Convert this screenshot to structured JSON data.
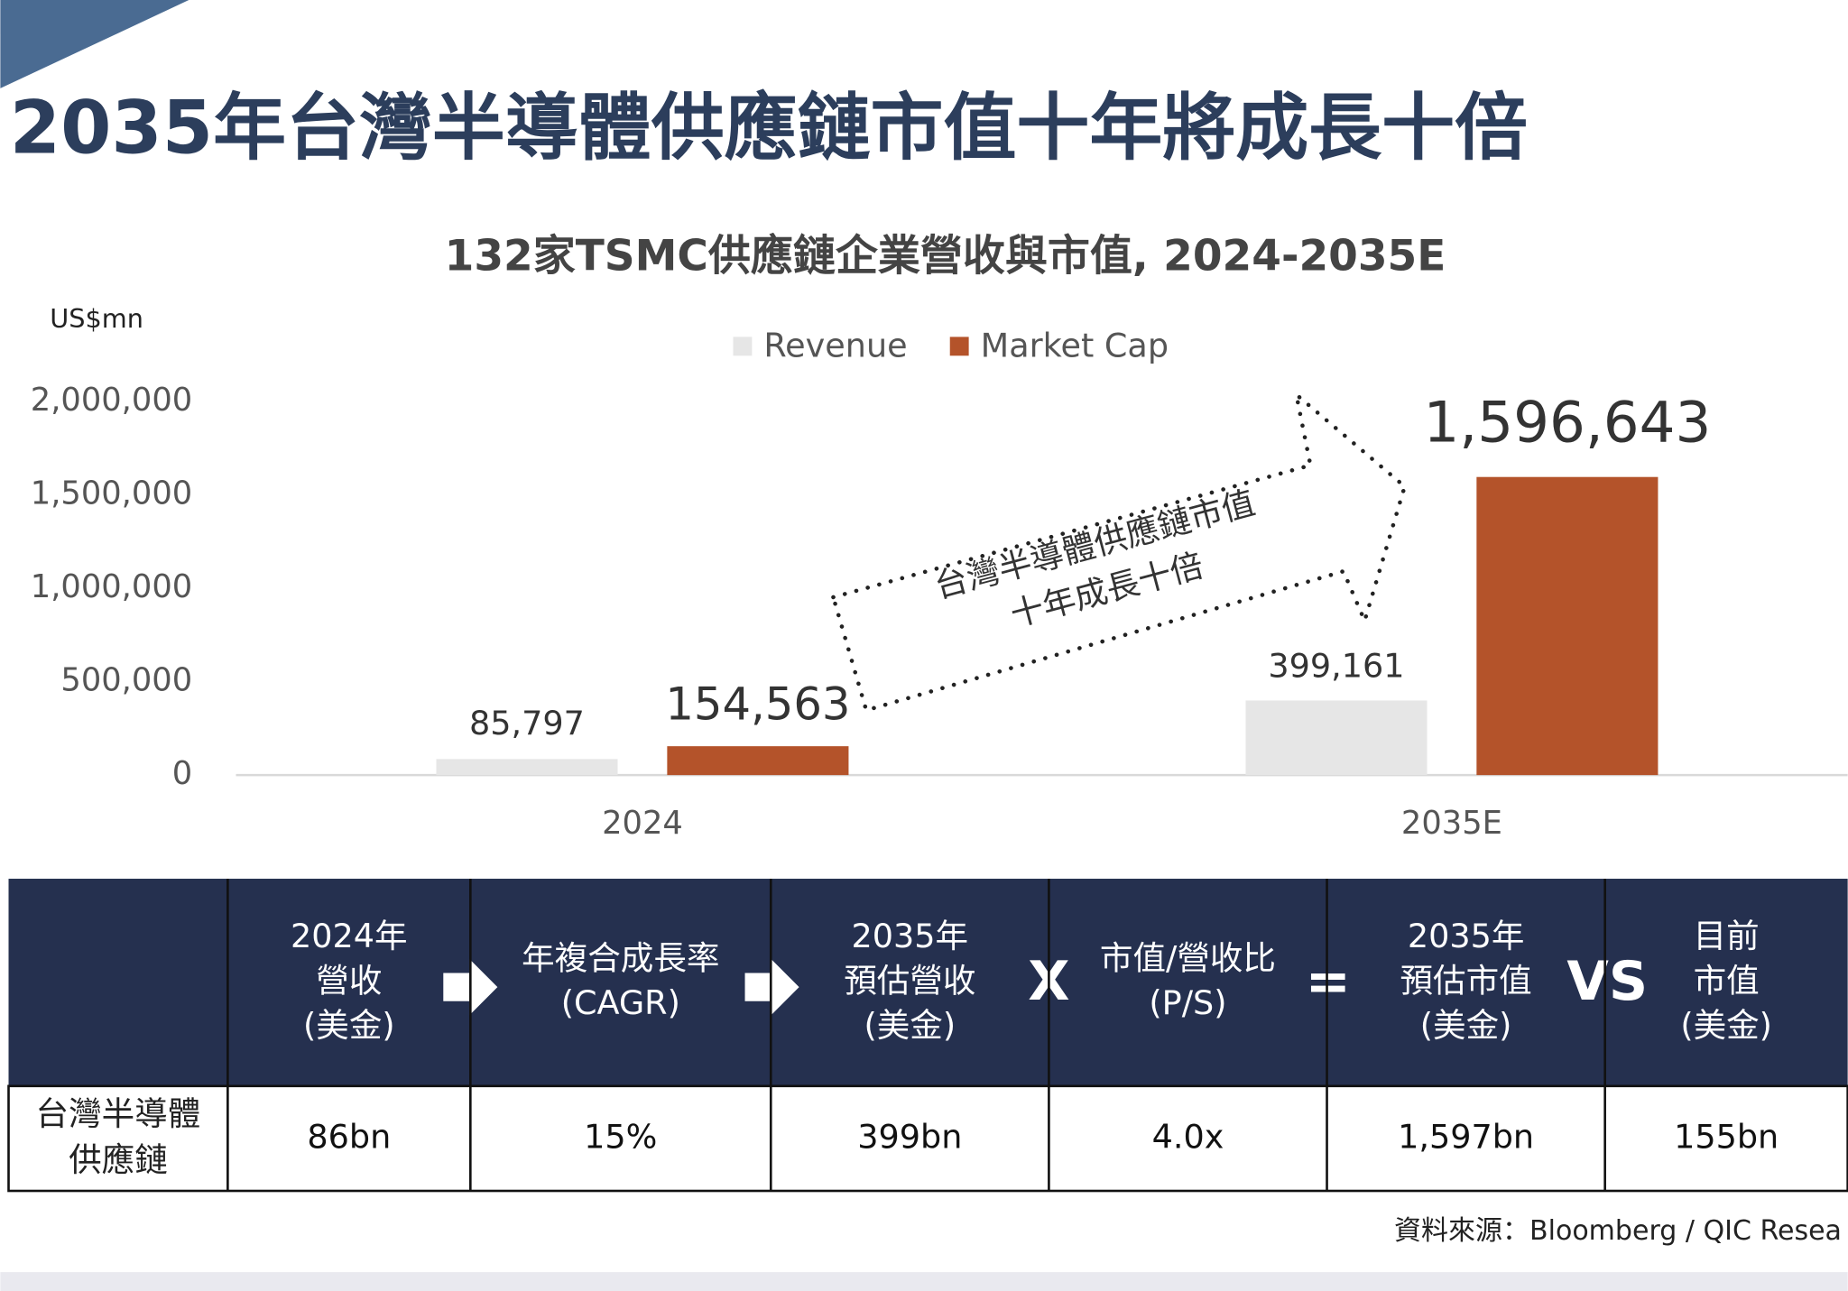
{
  "header": {
    "title": "2035年台灣半導體供應鏈市值十年將成長十倍"
  },
  "chart_data": {
    "type": "bar",
    "title": "132家TSMC供應鏈企業營收與市值, 2024-2035E",
    "y_label": "US$mn",
    "categories": [
      "2024",
      "2035E"
    ],
    "series": [
      {
        "name": "Revenue",
        "color": "#e6e6e6",
        "values": [
          85797,
          399161
        ],
        "value_labels": [
          "85,797",
          "399,161"
        ]
      },
      {
        "name": "Market Cap",
        "color": "#b4532a",
        "values": [
          154563,
          1596643
        ],
        "value_labels": [
          "154,563",
          "1,596,643"
        ]
      }
    ],
    "ylim": [
      0,
      2000000
    ],
    "yticks": [
      0,
      {
        "value": 500000,
        "label": "500,000"
      },
      {
        "value": 1000000,
        "label": "1,000,000"
      },
      {
        "value": 1500000,
        "label": "1,500,000"
      },
      {
        "value": 2000000,
        "label": "2,000,000"
      }
    ],
    "grid": false,
    "legend": "top",
    "annotation": [
      "台灣半導體供應鏈市值",
      "十年成長十倍"
    ]
  },
  "table": {
    "header": [
      [
        "2024年",
        "營收",
        "(美金)"
      ],
      [
        "年複合成長率",
        "(CAGR)"
      ],
      [
        "2035年",
        "預估營收",
        "(美金)"
      ],
      [
        "市值/營收比",
        "(P/S)"
      ],
      [
        "2035年",
        "預估市值",
        "(美金)"
      ],
      [
        "目前",
        "市值",
        "(美金)"
      ]
    ],
    "operators": [
      "X",
      "=",
      "VS"
    ],
    "rows": [
      [
        [
          "台灣半導體",
          "供應鏈"
        ],
        "86bn",
        "15%",
        "399bn",
        "4.0x",
        "1,597bn",
        "155bn"
      ]
    ]
  },
  "source": "資料來源：Bloomberg / QIC Resea"
}
